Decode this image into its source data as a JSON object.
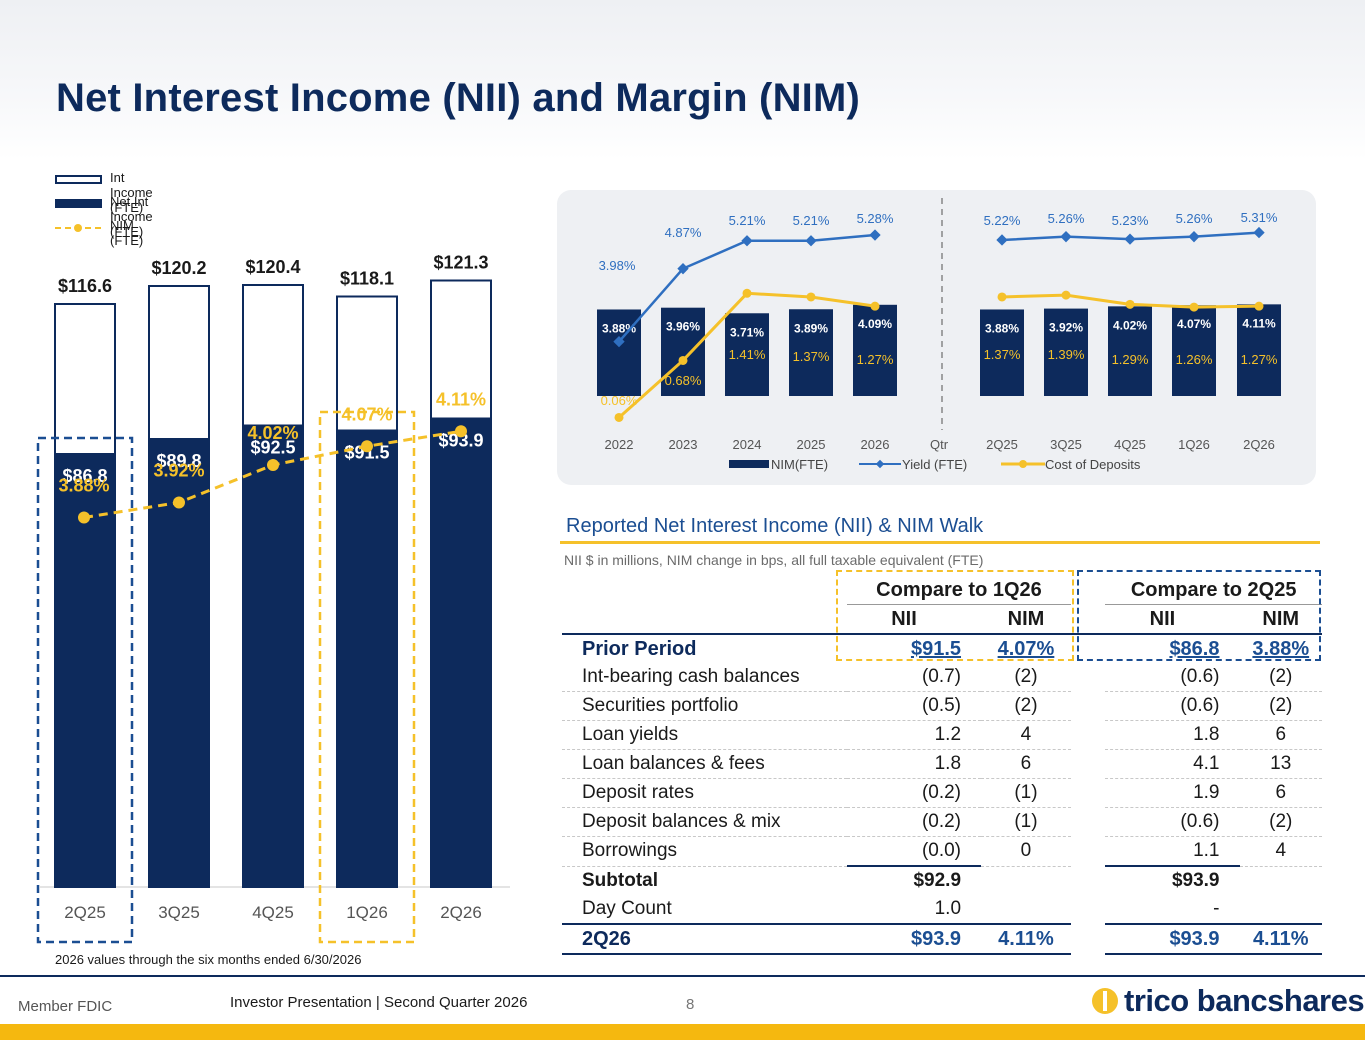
{
  "title": "Net Interest Income (NII) and Margin (NIM)",
  "colors": {
    "navy": "#0d2a5c",
    "blue": "#1b4e92",
    "gold": "#f5c12a",
    "yield": "#2f6fc0"
  },
  "chart_data": [
    {
      "type": "bar",
      "categories": [
        "2Q25",
        "3Q25",
        "4Q25",
        "1Q26",
        "2Q26"
      ],
      "series": [
        {
          "name": "Int Income (FTE)",
          "values": [
            116.6,
            120.2,
            120.4,
            118.1,
            121.3
          ],
          "labels": [
            "$116.6",
            "$120.2",
            "$120.4",
            "$118.1",
            "$121.3"
          ]
        },
        {
          "name": "Net Int Income (FTE)",
          "values": [
            86.8,
            89.8,
            92.5,
            91.5,
            93.9
          ],
          "labels": [
            "$86.8",
            "$89.8",
            "$92.5",
            "$91.5",
            "$93.9"
          ]
        },
        {
          "name": "NIM (FTE)",
          "values": [
            3.88,
            3.92,
            4.02,
            4.07,
            4.11
          ],
          "labels": [
            "3.88%",
            "3.92%",
            "4.02%",
            "4.07%",
            "4.11%"
          ]
        }
      ],
      "legend": [
        "Int Income (FTE)",
        "Net Int Income (FTE)",
        "NIM (FTE)"
      ],
      "legend_position": "top-left",
      "highlighted_categories": [
        "2Q25",
        "1Q26"
      ]
    },
    {
      "type": "bar",
      "categories": [
        "2022",
        "2023",
        "2024",
        "2025",
        "2026",
        "Qtr",
        "2Q25",
        "3Q25",
        "4Q25",
        "1Q26",
        "2Q26"
      ],
      "series": [
        {
          "name": "NIM(FTE)",
          "values": [
            3.88,
            3.96,
            3.71,
            3.89,
            4.09,
            null,
            3.88,
            3.92,
            4.02,
            4.07,
            4.11
          ],
          "labels": [
            "3.88%",
            "3.96%",
            "3.71%",
            "3.89%",
            "4.09%",
            "",
            "3.88%",
            "3.92%",
            "4.02%",
            "4.07%",
            "4.11%"
          ]
        },
        {
          "name": "Yield (FTE)",
          "values": [
            3.98,
            4.87,
            5.21,
            5.21,
            5.28,
            null,
            5.22,
            5.26,
            5.23,
            5.26,
            5.31
          ],
          "labels": [
            "3.98%",
            "4.87%",
            "5.21%",
            "5.21%",
            "5.28%",
            "",
            "5.22%",
            "5.26%",
            "5.23%",
            "5.26%",
            "5.31%"
          ]
        },
        {
          "name": "Cost of Deposits",
          "values": [
            0.06,
            0.68,
            1.41,
            1.37,
            1.27,
            null,
            1.37,
            1.39,
            1.29,
            1.26,
            1.27
          ],
          "labels": [
            "0.06%",
            "0.68%",
            "1.41%",
            "1.37%",
            "1.27%",
            "",
            "1.37%",
            "1.39%",
            "1.29%",
            "1.26%",
            "1.27%"
          ]
        }
      ],
      "legend": [
        "NIM(FTE)",
        "Yield (FTE)",
        "Cost of Deposits"
      ],
      "legend_position": "bottom"
    }
  ],
  "footnote": "2026 values through the six months ended 6/30/2026",
  "walk": {
    "title": "Reported Net Interest Income (NII) & NIM Walk",
    "subtitle": "NII $ in millions, NIM change in bps, all full taxable equivalent (FTE)",
    "group1": "Compare to 1Q26",
    "group2": "Compare to 2Q25",
    "col_nii": "NII",
    "col_nim": "NIM",
    "prior": {
      "label": "Prior Period",
      "nii1": "$91.5",
      "nim1": "4.07%",
      "nii2": "$86.8",
      "nim2": "3.88%"
    },
    "rows": [
      {
        "label": "Int-bearing cash balances",
        "nii1": "(0.7)",
        "nim1": "(2)",
        "nii2": "(0.6)",
        "nim2": "(2)"
      },
      {
        "label": "Securities portfolio",
        "nii1": "(0.5)",
        "nim1": "(2)",
        "nii2": "(0.6)",
        "nim2": "(2)"
      },
      {
        "label": "Loan yields",
        "nii1": "1.2",
        "nim1": "4",
        "nii2": "1.8",
        "nim2": "6"
      },
      {
        "label": "Loan balances & fees",
        "nii1": "1.8",
        "nim1": "6",
        "nii2": "4.1",
        "nim2": "13"
      },
      {
        "label": "Deposit rates",
        "nii1": "(0.2)",
        "nim1": "(1)",
        "nii2": "1.9",
        "nim2": "6"
      },
      {
        "label": "Deposit balances & mix",
        "nii1": "(0.2)",
        "nim1": "(1)",
        "nii2": "(0.6)",
        "nim2": "(2)"
      },
      {
        "label": "Borrowings",
        "nii1": "(0.0)",
        "nim1": "0",
        "nii2": "1.1",
        "nim2": "4"
      }
    ],
    "subtotal": {
      "label": "Subtotal",
      "nii1": "$92.9",
      "nii2": "$93.9"
    },
    "daycount": {
      "label": "Day Count",
      "nii1": "1.0",
      "nii2": "-"
    },
    "total": {
      "label": "2Q26",
      "nii1": "$93.9",
      "nim1": "4.11%",
      "nii2": "$93.9",
      "nim2": "4.11%"
    }
  },
  "footer": {
    "fdic": "Member FDIC",
    "presentation": "Investor Presentation  |  Second Quarter 2026",
    "page": "8",
    "logo": "trico bancshares"
  }
}
